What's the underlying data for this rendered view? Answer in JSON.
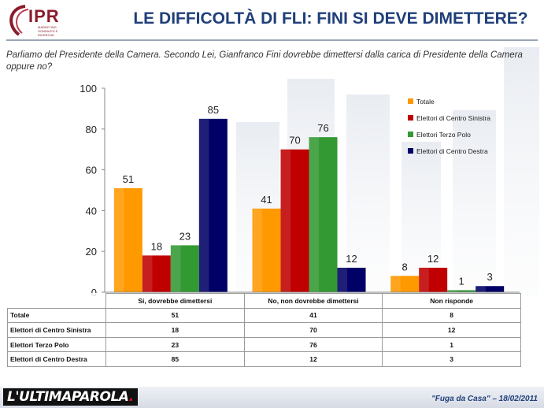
{
  "header": {
    "logo_text": "IPR",
    "logo_sub": "MARKETING · SONDAGGI E RICERCHE",
    "title": "LE DIFFICOLTÀ DI FLI: FINI SI DEVE DIMETTERE?"
  },
  "question": "Parliamo del Presidente della Camera. Secondo Lei, Gianfranco Fini dovrebbe dimettersi dalla carica di Presidente della Camera oppure no?",
  "footer": {
    "brand": "L'ULTIMAPAROLA",
    "brand_dot": ".",
    "note": "\"Fuga da Casa\" – 18/02/2011"
  },
  "colors": {
    "title": "#1f3f7a",
    "totale": "#ff9900",
    "centro_sinistra": "#c00000",
    "terzo_polo": "#339933",
    "centro_destra": "#000066"
  },
  "chart_data": {
    "type": "bar",
    "title": "",
    "xlabel": "",
    "ylabel": "",
    "ylim": [
      0,
      100
    ],
    "yticks": [
      0,
      20,
      40,
      60,
      80,
      100
    ],
    "categories": [
      "Si, dovrebbe dimettersi",
      "No, non dovrebbe dimettersi",
      "Non risponde"
    ],
    "series": [
      {
        "name": "Totale",
        "color": "#ff9900",
        "values": [
          51,
          41,
          8
        ]
      },
      {
        "name": "Elettori di Centro Sinistra",
        "color": "#c00000",
        "values": [
          18,
          70,
          12
        ]
      },
      {
        "name": "Elettori Terzo Polo",
        "color": "#339933",
        "values": [
          23,
          76,
          1
        ]
      },
      {
        "name": "Elettori di Centro Destra",
        "color": "#000066",
        "values": [
          85,
          12,
          3
        ]
      }
    ],
    "legend": "right",
    "grid": false,
    "data_labels": true
  }
}
